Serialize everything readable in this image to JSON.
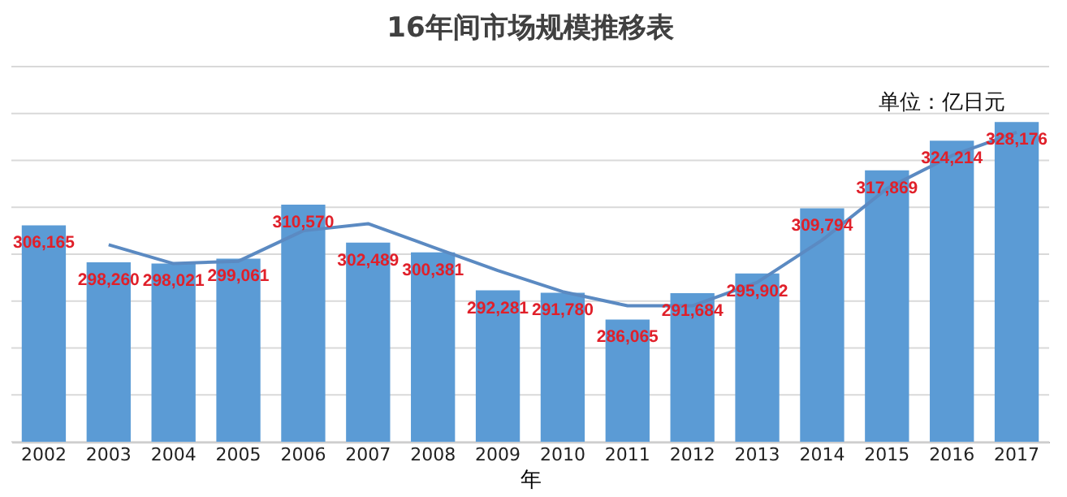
{
  "chart_data": {
    "type": "bar",
    "title": "16年间市场规模推移表",
    "xlabel": "年",
    "annotations": [
      "单位：亿日元"
    ],
    "categories": [
      "2002",
      "2003",
      "2004",
      "2005",
      "2006",
      "2007",
      "2008",
      "2009",
      "2010",
      "2011",
      "2012",
      "2013",
      "2014",
      "2015",
      "2016",
      "2017"
    ],
    "series": [
      {
        "color": "#5b9bd5",
        "values": [
          306165,
          298260,
          298021,
          299061,
          310570,
          302489,
          300381,
          292281,
          291780,
          286065,
          291684,
          295902,
          309794,
          317869,
          324214,
          328176
        ],
        "value_labels": [
          "306,165",
          "298,260",
          "298,021",
          "299,061",
          "310,570",
          "302,489",
          "300,381",
          "292,281",
          "291,780",
          "286,065",
          "291,684",
          "295,902",
          "309,794",
          "317,869",
          "324,214",
          "328,176"
        ]
      },
      {
        "type": "line",
        "color": "#5b8ac2",
        "values": [
          null,
          302000,
          298000,
          298500,
          305000,
          306500,
          301500,
          296500,
          292000,
          289000,
          289000,
          294000,
          303000,
          314000,
          321000,
          326000
        ]
      }
    ],
    "ylim": [
      260000,
      340000
    ],
    "yticks": [
      {
        "value": 260000,
        "label": null
      },
      {
        "value": 270000,
        "label": null
      },
      {
        "value": 280000,
        "label": null
      },
      {
        "value": 290000,
        "label": null
      },
      {
        "value": 300000,
        "label": null
      },
      {
        "value": 310000,
        "label": null
      },
      {
        "value": 320000,
        "label": null
      },
      {
        "value": 330000,
        "label": null
      },
      {
        "value": 340000,
        "label": null
      }
    ],
    "tick_labels": "x",
    "grid": "y"
  }
}
